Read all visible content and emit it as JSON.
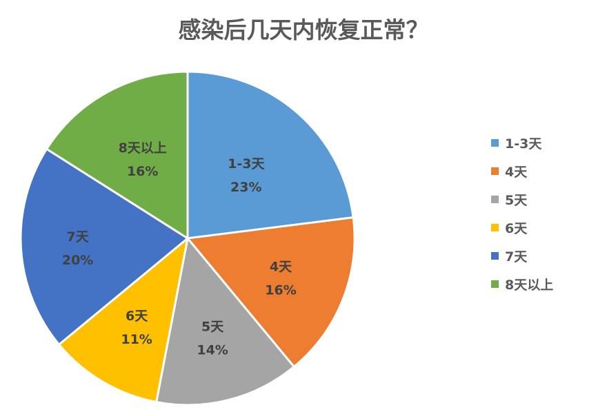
{
  "chart_data": {
    "type": "pie",
    "title": "感染后几天内恢复正常？",
    "categories": [
      "1-3天",
      "4天",
      "5天",
      "6天",
      "7天",
      "8天以上"
    ],
    "values": [
      23,
      16,
      14,
      11,
      20,
      16
    ],
    "value_labels": [
      "23%",
      "16%",
      "14%",
      "11%",
      "20%",
      "16%"
    ],
    "colors": [
      "#5B9BD5",
      "#ED7D31",
      "#A5A5A5",
      "#FFC000",
      "#4472C4",
      "#70AD47"
    ],
    "legend_position": "right",
    "start_angle": "12 o'clock",
    "direction": "clockwise"
  }
}
